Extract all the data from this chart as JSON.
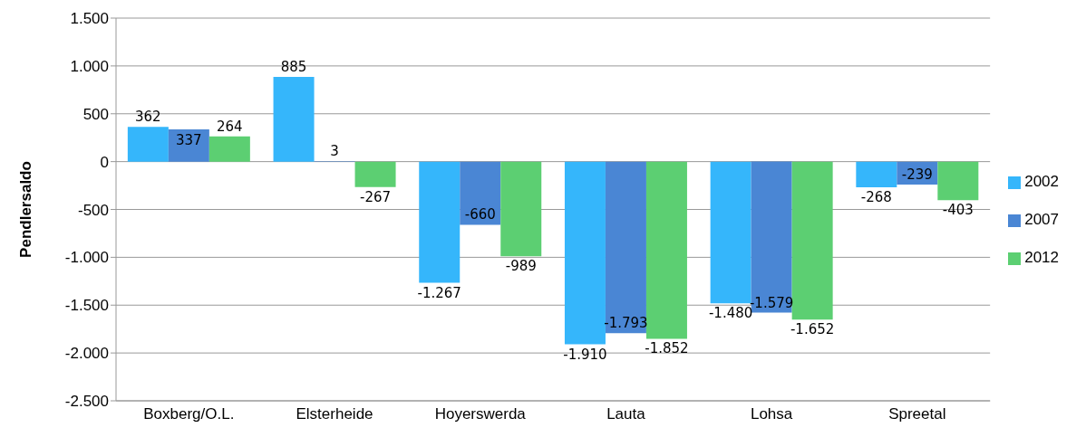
{
  "chart_data": {
    "type": "bar",
    "ylabel": "Pendlersaldo",
    "categories": [
      "Boxberg/O.L.",
      "Elsterheide",
      "Hoyerswerda",
      "Lauta",
      "Lohsa",
      "Spreetal"
    ],
    "series": [
      {
        "name": "2002",
        "color": "#35b6fb",
        "values": [
          362,
          885,
          -1267,
          -1910,
          -1480,
          -268
        ],
        "value_labels": [
          "362",
          "885",
          "-1.267",
          "-1.910",
          "-1.480",
          "-268"
        ]
      },
      {
        "name": "2007",
        "color": "#4a86d4",
        "values": [
          337,
          3,
          -660,
          -1793,
          -1579,
          -239
        ],
        "value_labels": [
          "337",
          "3",
          "-660",
          "-1.793",
          "-1.579",
          "-239"
        ]
      },
      {
        "name": "2012",
        "color": "#5ccf72",
        "values": [
          264,
          -267,
          -989,
          -1852,
          -1652,
          -403
        ],
        "value_labels": [
          "264",
          "-267",
          "-989",
          "-1.852",
          "-1.652",
          "-403"
        ]
      }
    ],
    "ylim": [
      -2500,
      1500
    ],
    "yticks": [
      {
        "value": -2500,
        "label": "-2.500"
      },
      {
        "value": -2000,
        "label": "-2.000"
      },
      {
        "value": -1500,
        "label": "-1.500"
      },
      {
        "value": -1000,
        "label": "-1.000"
      },
      {
        "value": -500,
        "label": "-500"
      },
      {
        "value": 0,
        "label": "0"
      },
      {
        "value": 500,
        "label": "500"
      },
      {
        "value": 1000,
        "label": "1.000"
      },
      {
        "value": 1500,
        "label": "1.500"
      }
    ],
    "grid": "y",
    "legend": "right"
  }
}
